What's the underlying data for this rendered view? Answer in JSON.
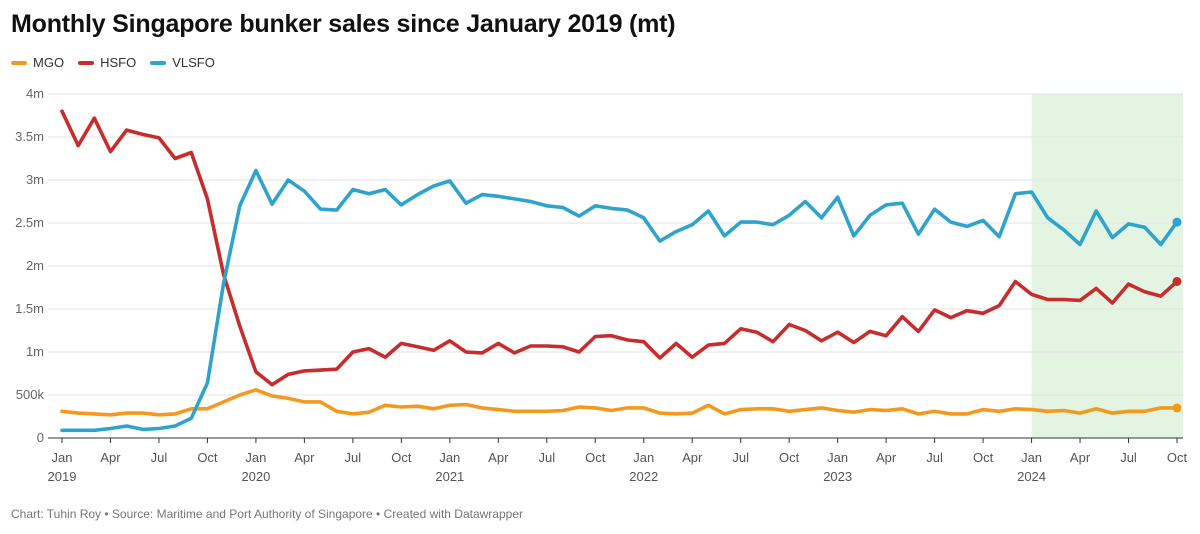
{
  "title": "Monthly Singapore bunker sales since January 2019 (mt)",
  "footer": "Chart: Tuhin Roy • Source: Maritime and Port Authority of Singapore • Created with Datawrapper",
  "chart_data": {
    "type": "line",
    "title": "Monthly Singapore bunker sales since January 2019 (mt)",
    "xlabel": "",
    "ylabel": "",
    "x_start": "2019-01",
    "x_end": "2024-10",
    "ylim": [
      0,
      4000000
    ],
    "grid": true,
    "legend_position": "top-left",
    "y_ticks": [
      {
        "value": 0,
        "label": "0"
      },
      {
        "value": 500000,
        "label": "500k"
      },
      {
        "value": 1000000,
        "label": "1m"
      },
      {
        "value": 1500000,
        "label": "1.5m"
      },
      {
        "value": 2000000,
        "label": "2m"
      },
      {
        "value": 2500000,
        "label": "2.5m"
      },
      {
        "value": 3000000,
        "label": "3m"
      },
      {
        "value": 3500000,
        "label": "3.5m"
      },
      {
        "value": 4000000,
        "label": "4m"
      }
    ],
    "x_ticks": [
      {
        "month": "2019-01",
        "label": "Jan",
        "year": "2019"
      },
      {
        "month": "2019-04",
        "label": "Apr",
        "year": ""
      },
      {
        "month": "2019-07",
        "label": "Jul",
        "year": ""
      },
      {
        "month": "2019-10",
        "label": "Oct",
        "year": ""
      },
      {
        "month": "2020-01",
        "label": "Jan",
        "year": "2020"
      },
      {
        "month": "2020-04",
        "label": "Apr",
        "year": ""
      },
      {
        "month": "2020-07",
        "label": "Jul",
        "year": ""
      },
      {
        "month": "2020-10",
        "label": "Oct",
        "year": ""
      },
      {
        "month": "2021-01",
        "label": "Jan",
        "year": "2021"
      },
      {
        "month": "2021-04",
        "label": "Apr",
        "year": ""
      },
      {
        "month": "2021-07",
        "label": "Jul",
        "year": ""
      },
      {
        "month": "2021-10",
        "label": "Oct",
        "year": ""
      },
      {
        "month": "2022-01",
        "label": "Jan",
        "year": "2022"
      },
      {
        "month": "2022-04",
        "label": "Apr",
        "year": ""
      },
      {
        "month": "2022-07",
        "label": "Jul",
        "year": ""
      },
      {
        "month": "2022-10",
        "label": "Oct",
        "year": ""
      },
      {
        "month": "2023-01",
        "label": "Jan",
        "year": "2023"
      },
      {
        "month": "2023-04",
        "label": "Apr",
        "year": ""
      },
      {
        "month": "2023-07",
        "label": "Jul",
        "year": ""
      },
      {
        "month": "2023-10",
        "label": "Oct",
        "year": ""
      },
      {
        "month": "2024-01",
        "label": "Jan",
        "year": "2024"
      },
      {
        "month": "2024-04",
        "label": "Apr",
        "year": ""
      },
      {
        "month": "2024-07",
        "label": "Jul",
        "year": ""
      },
      {
        "month": "2024-10",
        "label": "Oct",
        "year": ""
      }
    ],
    "highlight_range": {
      "start": "2024-01",
      "end": "2024-10",
      "color": "#e3f4e3"
    },
    "series": [
      {
        "name": "MGO",
        "color": "#f39a1e",
        "end_marker": true,
        "values": [
          310000,
          290000,
          280000,
          270000,
          290000,
          290000,
          270000,
          280000,
          340000,
          340000,
          420000,
          500000,
          560000,
          490000,
          460000,
          420000,
          420000,
          310000,
          280000,
          300000,
          380000,
          360000,
          370000,
          340000,
          380000,
          390000,
          350000,
          330000,
          310000,
          310000,
          310000,
          320000,
          360000,
          350000,
          320000,
          350000,
          350000,
          290000,
          280000,
          290000,
          380000,
          280000,
          330000,
          340000,
          340000,
          310000,
          330000,
          350000,
          320000,
          300000,
          330000,
          320000,
          340000,
          280000,
          310000,
          280000,
          280000,
          330000,
          310000,
          340000,
          330000,
          310000,
          320000,
          290000,
          340000,
          290000,
          310000,
          310000,
          350000,
          350000
        ]
      },
      {
        "name": "HSFO",
        "color": "#c72d2d",
        "end_marker": true,
        "values": [
          3800000,
          3400000,
          3720000,
          3330000,
          3580000,
          3530000,
          3490000,
          3250000,
          3320000,
          2780000,
          1900000,
          1300000,
          770000,
          620000,
          740000,
          780000,
          790000,
          800000,
          1000000,
          1040000,
          940000,
          1100000,
          1060000,
          1020000,
          1130000,
          1000000,
          990000,
          1100000,
          990000,
          1070000,
          1070000,
          1060000,
          1000000,
          1180000,
          1190000,
          1140000,
          1120000,
          930000,
          1100000,
          940000,
          1080000,
          1100000,
          1270000,
          1230000,
          1120000,
          1320000,
          1250000,
          1130000,
          1230000,
          1110000,
          1240000,
          1190000,
          1410000,
          1240000,
          1490000,
          1400000,
          1480000,
          1450000,
          1540000,
          1820000,
          1670000,
          1610000,
          1610000,
          1600000,
          1740000,
          1570000,
          1790000,
          1700000,
          1650000,
          1820000
        ]
      },
      {
        "name": "VLSFO",
        "color": "#2ea4cc",
        "end_marker": true,
        "values": [
          90000,
          90000,
          90000,
          110000,
          140000,
          100000,
          110000,
          140000,
          230000,
          640000,
          1800000,
          2700000,
          3110000,
          2720000,
          3000000,
          2870000,
          2660000,
          2650000,
          2890000,
          2840000,
          2890000,
          2710000,
          2830000,
          2930000,
          2990000,
          2730000,
          2830000,
          2810000,
          2780000,
          2750000,
          2700000,
          2680000,
          2580000,
          2700000,
          2670000,
          2650000,
          2560000,
          2290000,
          2400000,
          2480000,
          2640000,
          2350000,
          2510000,
          2510000,
          2480000,
          2590000,
          2750000,
          2560000,
          2800000,
          2350000,
          2590000,
          2710000,
          2730000,
          2370000,
          2660000,
          2510000,
          2460000,
          2530000,
          2340000,
          2840000,
          2860000,
          2560000,
          2420000,
          2250000,
          2640000,
          2330000,
          2490000,
          2450000,
          2250000,
          2510000
        ]
      }
    ]
  }
}
